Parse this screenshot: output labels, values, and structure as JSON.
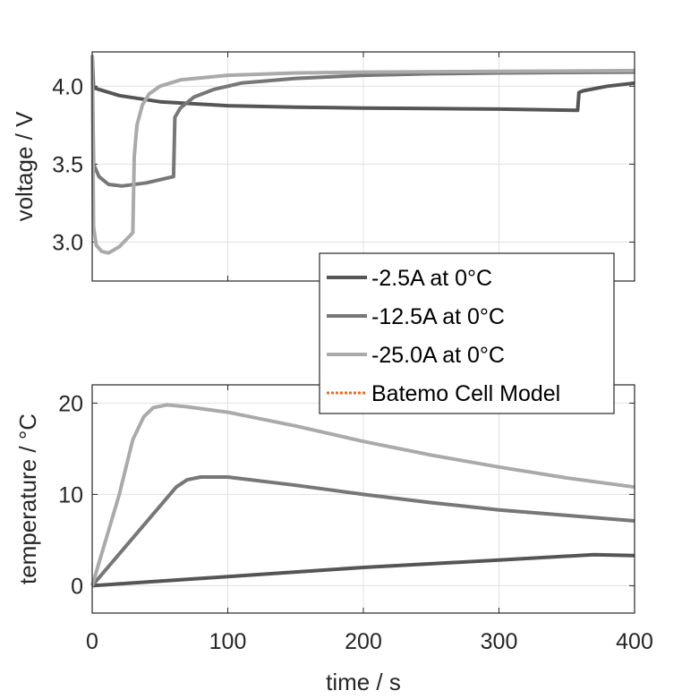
{
  "chart_data": [
    {
      "type": "line",
      "title": "",
      "xlabel": "",
      "ylabel": "voltage / V",
      "xlim": [
        0,
        400
      ],
      "ylim": [
        2.75,
        4.22
      ],
      "xticks": [
        0,
        100,
        200,
        300,
        400
      ],
      "yticks": [
        3.0,
        3.5,
        4.0
      ],
      "ytick_labels": [
        "3.0",
        "3.5",
        "4.0"
      ],
      "grid": true,
      "series": [
        {
          "name": "-2.5A at 0°C",
          "color": "#555555",
          "x": [
            0,
            1,
            20,
            50,
            100,
            150,
            200,
            250,
            300,
            358,
            359,
            362,
            380,
            400
          ],
          "y": [
            4.2,
            3.99,
            3.94,
            3.9,
            3.875,
            3.865,
            3.86,
            3.857,
            3.853,
            3.845,
            3.96,
            3.97,
            4.0,
            4.02
          ]
        },
        {
          "name": "-12.5A at 0°C",
          "color": "#777777",
          "x": [
            0,
            1,
            5,
            12,
            22,
            40,
            60,
            61,
            65,
            75,
            90,
            110,
            150,
            200,
            250,
            300,
            400
          ],
          "y": [
            4.2,
            3.5,
            3.42,
            3.37,
            3.36,
            3.38,
            3.42,
            3.8,
            3.86,
            3.93,
            3.98,
            4.02,
            4.05,
            4.07,
            4.08,
            4.085,
            4.09
          ]
        },
        {
          "name": "-25.0A at 0°C",
          "color": "#aaaaaa",
          "x": [
            0,
            1,
            3,
            7,
            12,
            20,
            30,
            31,
            33,
            37,
            42,
            50,
            65,
            100,
            150,
            200,
            300,
            400
          ],
          "y": [
            4.2,
            3.1,
            2.98,
            2.94,
            2.93,
            2.97,
            3.06,
            3.55,
            3.75,
            3.88,
            3.95,
            4.0,
            4.04,
            4.07,
            4.085,
            4.09,
            4.095,
            4.1
          ]
        }
      ]
    },
    {
      "type": "line",
      "title": "",
      "xlabel": "time / s",
      "ylabel": "temperature / °C",
      "xlim": [
        0,
        400
      ],
      "ylim": [
        -3,
        22
      ],
      "xticks": [
        0,
        100,
        200,
        300,
        400
      ],
      "xtick_labels": [
        "0",
        "100",
        "200",
        "300",
        "400"
      ],
      "yticks": [
        0,
        10,
        20
      ],
      "ytick_labels": [
        "0",
        "10",
        "20"
      ],
      "grid": true,
      "series": [
        {
          "name": "-2.5A at 0°C",
          "color": "#555555",
          "x": [
            0,
            100,
            200,
            300,
            370,
            400
          ],
          "y": [
            0,
            1.0,
            2.0,
            2.8,
            3.4,
            3.3
          ]
        },
        {
          "name": "-12.5A at 0°C",
          "color": "#777777",
          "x": [
            0,
            62,
            70,
            80,
            100,
            150,
            200,
            250,
            300,
            350,
            400
          ],
          "y": [
            0,
            10.8,
            11.6,
            11.9,
            11.9,
            11.0,
            10.0,
            9.1,
            8.3,
            7.7,
            7.1
          ]
        },
        {
          "name": "-25.0A at 0°C",
          "color": "#aaaaaa",
          "x": [
            0,
            20,
            30,
            38,
            45,
            55,
            70,
            100,
            150,
            200,
            250,
            300,
            350,
            400
          ],
          "y": [
            0,
            10,
            16,
            18.5,
            19.5,
            19.8,
            19.6,
            19.0,
            17.5,
            15.8,
            14.3,
            13.0,
            11.8,
            10.8
          ]
        }
      ]
    }
  ],
  "legend": {
    "placement": "center-right",
    "entries": [
      {
        "label": "-2.5A at 0°C",
        "color": "#555555",
        "style": "solid"
      },
      {
        "label": "-12.5A at 0°C",
        "color": "#777777",
        "style": "solid"
      },
      {
        "label": "-25.0A at 0°C",
        "color": "#aaaaaa",
        "style": "solid"
      },
      {
        "label": "Batemo Cell Model",
        "color": "#f06a1d",
        "style": "dotted"
      }
    ]
  }
}
